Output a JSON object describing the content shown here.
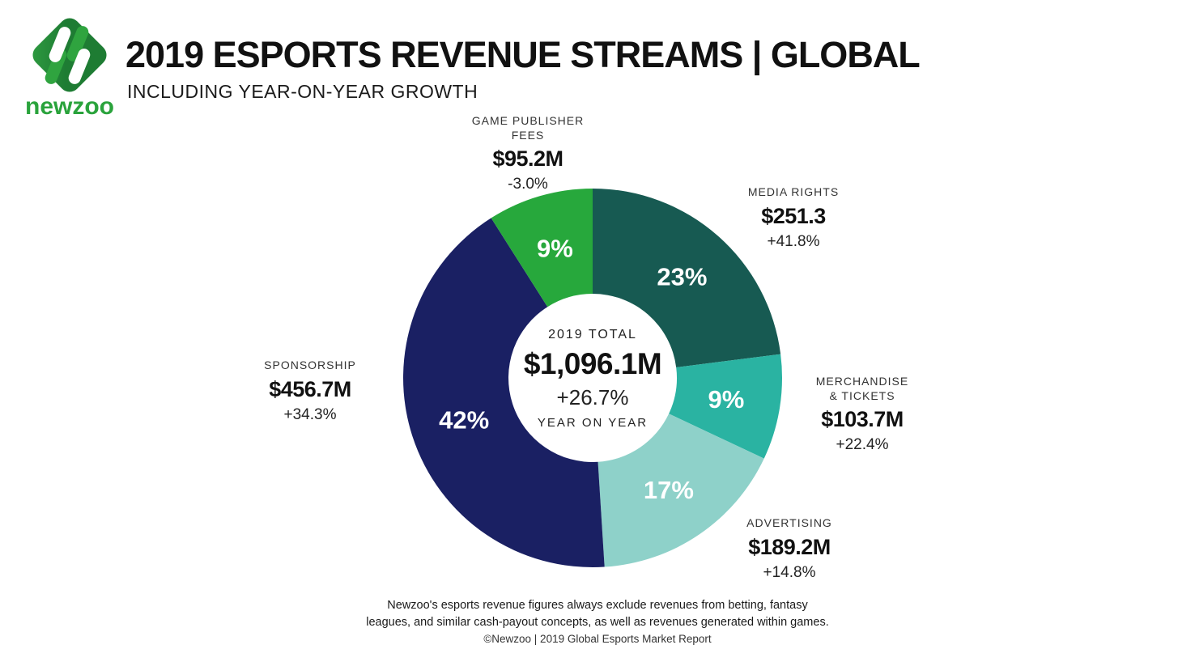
{
  "header": {
    "logo_wordmark": "newzoo",
    "title": "2019 ESPORTS REVENUE STREAMS | GLOBAL",
    "subtitle": "INCLUDING YEAR-ON-YEAR GROWTH"
  },
  "brand": {
    "logo_green_dark": "#1e7c33",
    "logo_green_mid": "#2fa43f",
    "wordmark_green": "#2aa33c"
  },
  "chart_data": {
    "type": "pie",
    "subtype": "donut",
    "title": "2019 ESPORTS REVENUE STREAMS | GLOBAL",
    "subtitle": "INCLUDING YEAR-ON-YEAR GROWTH",
    "start_angle_deg": 0,
    "direction": "clockwise",
    "center": {
      "line1": "2019 TOTAL",
      "total": "$1,096.1M",
      "growth": "+26.7%",
      "line4": "YEAR ON YEAR"
    },
    "segments": [
      {
        "label": "MEDIA RIGHTS",
        "label_lines": [
          "MEDIA RIGHTS"
        ],
        "value": "$251.3",
        "growth": "+41.8%",
        "percent": 23,
        "percent_label": "23%",
        "color": "#175a52"
      },
      {
        "label": "MERCHANDISE & TICKETS",
        "label_lines": [
          "MERCHANDISE",
          "& TICKETS"
        ],
        "value": "$103.7M",
        "growth": "+22.4%",
        "percent": 9,
        "percent_label": "9%",
        "color": "#2ab3a2"
      },
      {
        "label": "ADVERTISING",
        "label_lines": [
          "ADVERTISING"
        ],
        "value": "$189.2M",
        "growth": "+14.8%",
        "percent": 17,
        "percent_label": "17%",
        "color": "#8ed1c9"
      },
      {
        "label": "SPONSORSHIP",
        "label_lines": [
          "SPONSORSHIP"
        ],
        "value": "$456.7M",
        "growth": "+34.3%",
        "percent": 42,
        "percent_label": "42%",
        "color": "#1a2063"
      },
      {
        "label": "GAME PUBLISHER FEES",
        "label_lines": [
          "GAME PUBLISHER",
          "FEES"
        ],
        "value": "$95.2M",
        "growth": "-3.0%",
        "percent": 9,
        "percent_label": "9%",
        "color": "#27a83c"
      }
    ]
  },
  "footer": {
    "disclaimer_line1": "Newzoo's esports revenue figures always exclude revenues from betting, fantasy",
    "disclaimer_line2": "leagues, and similar cash-payout concepts, as well as revenues generated within games.",
    "credit": "©Newzoo | 2019 Global Esports Market Report"
  }
}
